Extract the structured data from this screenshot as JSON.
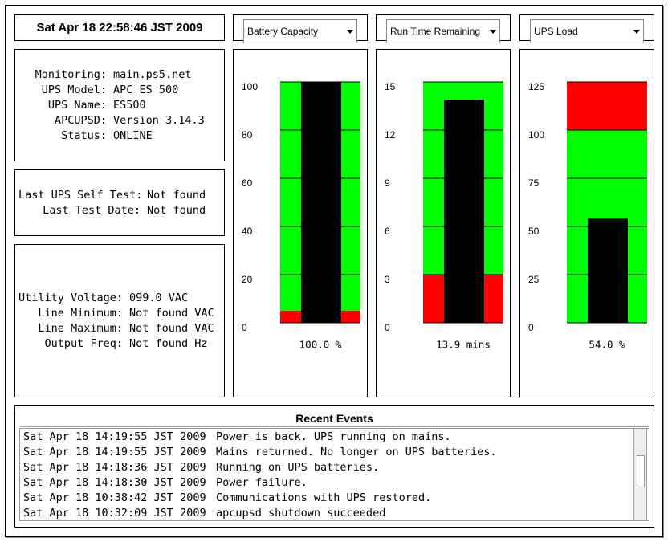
{
  "datetime": "Sat Apr 18 22:58:46 JST 2009",
  "status_panel": {
    "rows": [
      [
        "Monitoring:",
        "main.ps5.net"
      ],
      [
        "UPS Model:",
        "APC ES 500"
      ],
      [
        "UPS Name:",
        "ES500"
      ],
      [
        "APCUPSD:",
        "Version 3.14.3"
      ],
      [
        "Status:",
        "ONLINE"
      ]
    ]
  },
  "test_panel": {
    "rows": [
      [
        "Last UPS Self Test:",
        "Not found"
      ],
      [
        "Last Test Date:",
        "Not found"
      ]
    ]
  },
  "voltage_panel": {
    "rows": [
      [
        "Utility Voltage:",
        "099.0 VAC"
      ],
      [
        "Line Minimum:",
        "Not found VAC"
      ],
      [
        "Line Maximum:",
        "Not found VAC"
      ],
      [
        "Output Freq:",
        "Not found Hz"
      ]
    ]
  },
  "gauges": [
    {
      "select": "Battery Capacity",
      "ylim": [
        0,
        100
      ],
      "yticks": [
        0,
        20,
        40,
        60,
        80,
        100
      ],
      "value": 100,
      "value_label": "100.0 %",
      "zones": [
        {
          "color": "#ff0000",
          "from": 0,
          "to": 5
        },
        {
          "color": "#00ff00",
          "from": 5,
          "to": 100
        }
      ]
    },
    {
      "select": "Run Time Remaining",
      "ylim": [
        0,
        15
      ],
      "yticks": [
        0,
        3,
        6,
        9,
        12,
        15
      ],
      "value": 13.9,
      "value_label": "13.9 mins",
      "zones": [
        {
          "color": "#ff0000",
          "from": 0,
          "to": 3
        },
        {
          "color": "#00ff00",
          "from": 3,
          "to": 15
        }
      ]
    },
    {
      "select": "UPS Load",
      "ylim": [
        0,
        125
      ],
      "yticks": [
        0,
        25,
        50,
        75,
        100,
        125
      ],
      "value": 54,
      "value_label": "54.0 %",
      "zones": [
        {
          "color": "#00ff00",
          "from": 0,
          "to": 100
        },
        {
          "color": "#ff0000",
          "from": 100,
          "to": 125
        }
      ]
    }
  ],
  "events": {
    "title": "Recent Events",
    "rows": [
      [
        "Sat Apr 18 14:19:55 JST 2009",
        "Power is back. UPS running on mains."
      ],
      [
        "Sat Apr 18 14:19:55 JST 2009",
        "Mains returned. No longer on UPS batteries."
      ],
      [
        "Sat Apr 18 14:18:36 JST 2009",
        "Running on UPS batteries."
      ],
      [
        "Sat Apr 18 14:18:30 JST 2009",
        "Power failure."
      ],
      [
        "Sat Apr 18 10:38:42 JST 2009",
        "Communications with UPS restored."
      ],
      [
        "Sat Apr 18 10:32:09 JST 2009",
        "apcupsd shutdown succeeded"
      ]
    ]
  }
}
